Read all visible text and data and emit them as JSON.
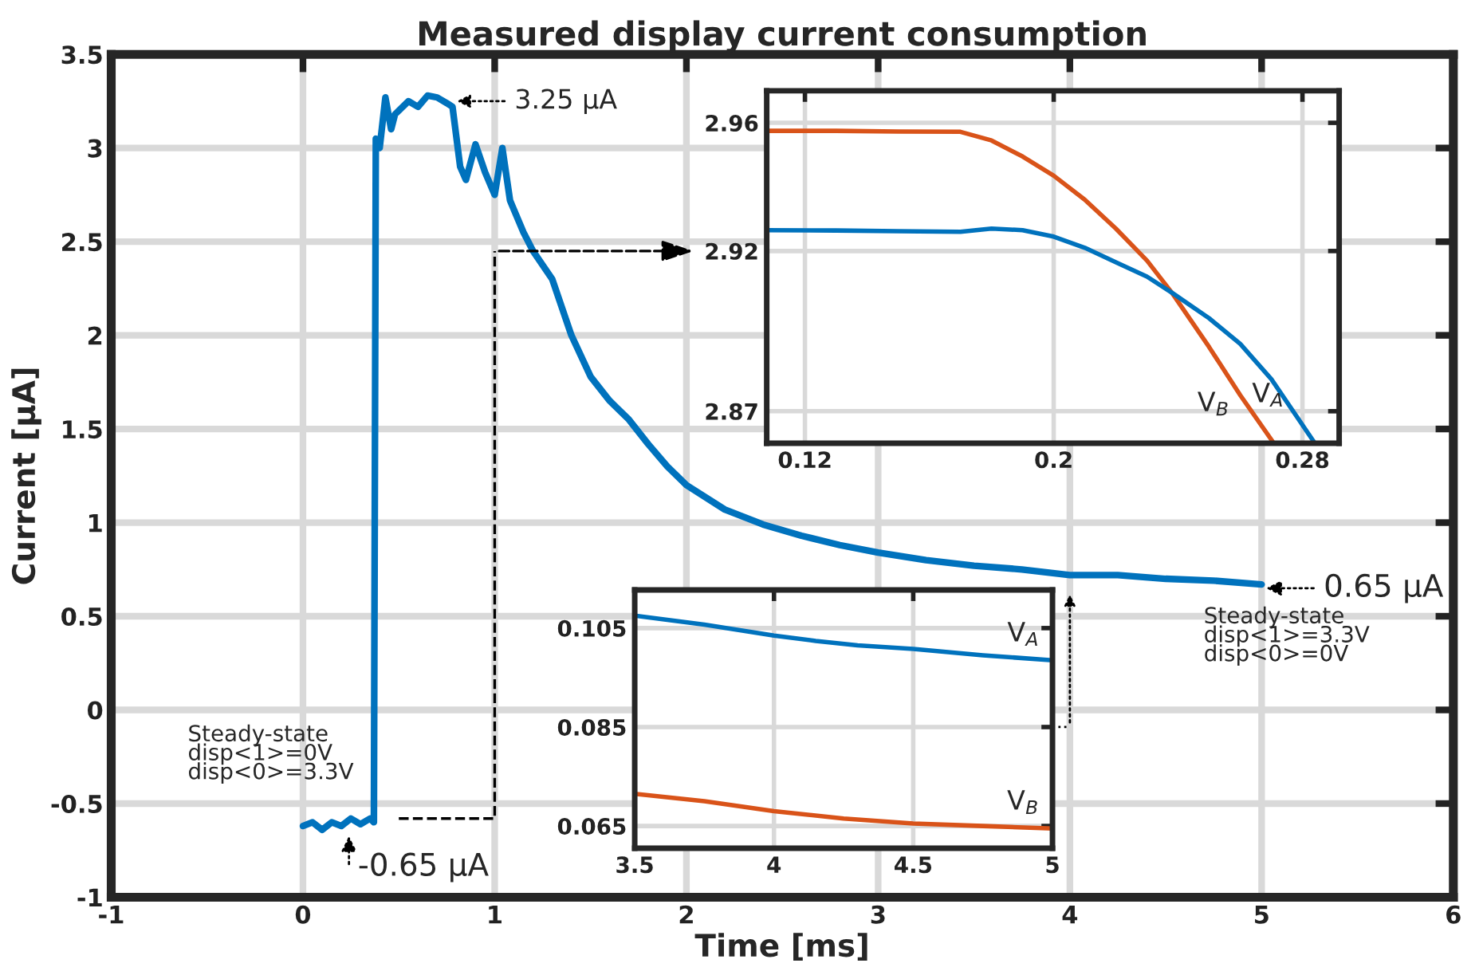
{
  "chart_data": [
    {
      "type": "line",
      "title": "Measured display current consumption",
      "xlabel": "Time [ms]",
      "ylabel": "Current [μA]",
      "xlim": [
        -1,
        6
      ],
      "xticks": [
        -1,
        0,
        1,
        2,
        3,
        4,
        5,
        6
      ],
      "ylim": [
        -1,
        3.5
      ],
      "yticks": [
        -1,
        -0.5,
        0,
        0.5,
        1,
        1.5,
        2,
        2.5,
        3,
        3.5
      ],
      "grid": true,
      "legend": false,
      "series": [
        {
          "color": "#0072bd",
          "x": [
            0,
            0.05,
            0.1,
            0.15,
            0.2,
            0.25,
            0.3,
            0.35,
            0.37,
            0.38,
            0.4,
            0.43,
            0.46,
            0.48,
            0.5,
            0.55,
            0.6,
            0.65,
            0.7,
            0.75,
            0.78,
            0.82,
            0.85,
            0.9,
            0.95,
            1.0,
            1.04,
            1.08,
            1.15,
            1.2,
            1.3,
            1.4,
            1.5,
            1.6,
            1.7,
            1.8,
            1.9,
            2.0,
            2.2,
            2.4,
            2.6,
            2.8,
            3.0,
            3.25,
            3.5,
            3.75,
            4.0,
            4.25,
            4.5,
            4.75,
            5.0
          ],
          "values": [
            -0.62,
            -0.6,
            -0.64,
            -0.6,
            -0.62,
            -0.58,
            -0.61,
            -0.58,
            -0.6,
            3.05,
            3.0,
            3.27,
            3.1,
            3.18,
            3.2,
            3.25,
            3.22,
            3.28,
            3.27,
            3.24,
            3.22,
            2.9,
            2.83,
            3.02,
            2.87,
            2.75,
            3.0,
            2.72,
            2.55,
            2.45,
            2.3,
            2.0,
            1.78,
            1.65,
            1.55,
            1.42,
            1.3,
            1.2,
            1.07,
            0.99,
            0.93,
            0.88,
            0.84,
            0.8,
            0.77,
            0.75,
            0.72,
            0.72,
            0.7,
            0.69,
            0.67
          ]
        }
      ],
      "annotations": [
        {
          "text": "3.25 μA",
          "x": 0.78,
          "y": 3.25
        },
        {
          "text": "-0.65 μA",
          "x": 0.24,
          "y": -0.65
        },
        {
          "text": "0.65 μA",
          "x": 5.0,
          "y": 0.65
        },
        "Steady-state\ndisp<1>=0V\ndisp<0>=3.3V",
        "Steady-state\ndisp<1>=3.3V\ndisp<0>=0V"
      ]
    },
    {
      "type": "line",
      "xlim": [
        0.1077,
        0.2918
      ],
      "xticks": [
        0.12,
        0.2,
        0.28
      ],
      "ylim": [
        2.86,
        2.97
      ],
      "yticks": [
        2.87,
        2.92,
        2.96
      ],
      "grid": true,
      "legend": false,
      "series": [
        {
          "name": "V$_{B}$",
          "color": "#d95319",
          "x": [
            0.1077,
            0.13,
            0.15,
            0.17,
            0.18,
            0.19,
            0.2,
            0.21,
            0.22,
            0.23,
            0.238,
            0.25,
            0.26,
            0.2708
          ],
          "values": [
            2.9575,
            2.9575,
            2.9573,
            2.9572,
            2.9545,
            2.9495,
            2.9435,
            2.936,
            2.927,
            2.917,
            2.907,
            2.89,
            2.875,
            2.86
          ]
        },
        {
          "name": "V$_{A}$",
          "color": "#0072bd",
          "x": [
            0.1077,
            0.13,
            0.15,
            0.17,
            0.18,
            0.19,
            0.2,
            0.21,
            0.22,
            0.23,
            0.238,
            0.25,
            0.26,
            0.27,
            0.284
          ],
          "values": [
            2.9265,
            2.9264,
            2.9262,
            2.926,
            2.927,
            2.9265,
            2.9245,
            2.921,
            2.9165,
            2.912,
            2.907,
            2.899,
            2.891,
            2.88,
            2.86
          ]
        }
      ]
    },
    {
      "type": "line",
      "xlim": [
        3.5,
        5
      ],
      "xticks": [
        3.5,
        4,
        4.5,
        5
      ],
      "ylim": [
        0.0605,
        0.1127
      ],
      "yticks": [
        0.065,
        0.085,
        0.105
      ],
      "grid": true,
      "legend": false,
      "series": [
        {
          "name": "V$_{A}$",
          "color": "#0072bd",
          "x": [
            3.5,
            3.75,
            4.0,
            4.15,
            4.3,
            4.5,
            4.75,
            5.0
          ],
          "values": [
            0.1075,
            0.1057,
            0.1035,
            0.1024,
            0.1015,
            0.1008,
            0.0995,
            0.0985
          ]
        },
        {
          "name": "V$_{B}$",
          "color": "#d95319",
          "x": [
            3.5,
            3.75,
            4.0,
            4.25,
            4.5,
            4.75,
            5.0
          ],
          "values": [
            0.0715,
            0.07,
            0.068,
            0.0665,
            0.0655,
            0.065,
            0.0645
          ]
        }
      ]
    }
  ]
}
